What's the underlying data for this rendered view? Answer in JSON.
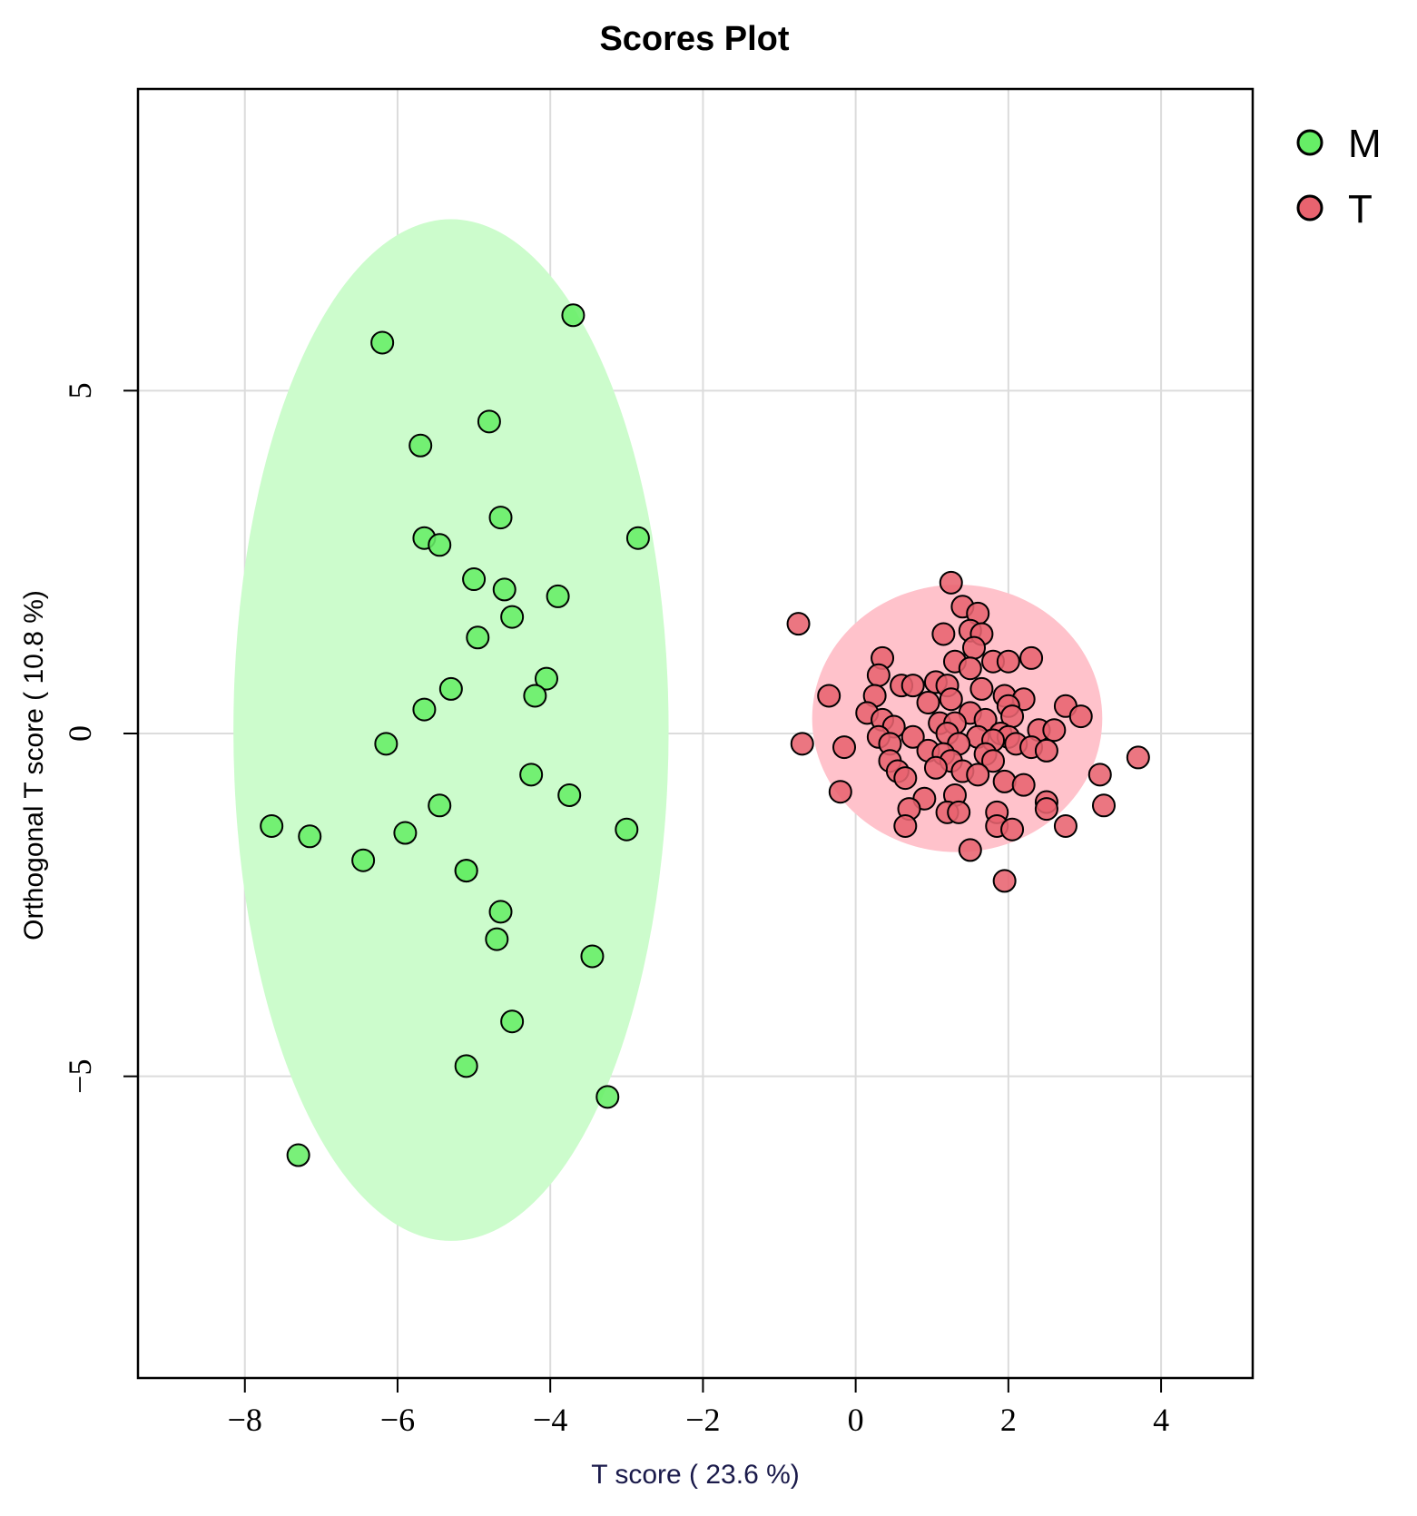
{
  "chart_data": {
    "type": "scatter",
    "title": "Scores Plot",
    "xlabel": "T score ( 23.6 %)",
    "ylabel": "Orthogonal T score ( 10.8 %)",
    "xlim": [
      -9.4,
      5.2
    ],
    "ylim": [
      -9.4,
      9.4
    ],
    "xticks": [
      -8,
      -6,
      -4,
      -2,
      0,
      2,
      4
    ],
    "xtick_labels": [
      "−8",
      "−6",
      "−4",
      "−2",
      "0",
      "2",
      "4"
    ],
    "yticks": [
      -5,
      0,
      5
    ],
    "ytick_labels": [
      "−5",
      "0",
      "5"
    ],
    "grid": true,
    "legend_position": "top-right (outside plot)",
    "series": [
      {
        "name": "M",
        "color": "#66ee66",
        "ellipse": {
          "cx": -5.3,
          "cy": 0.05,
          "rx": 2.85,
          "ry": 7.45,
          "color": "#ccfccc"
        },
        "points": [
          [
            -3.7,
            6.1
          ],
          [
            -6.2,
            5.7
          ],
          [
            -4.8,
            4.55
          ],
          [
            -5.7,
            4.2
          ],
          [
            -4.65,
            3.15
          ],
          [
            -2.85,
            2.85
          ],
          [
            -5.65,
            2.85
          ],
          [
            -5.45,
            2.75
          ],
          [
            -5.0,
            2.25
          ],
          [
            -4.6,
            2.1
          ],
          [
            -3.9,
            2.0
          ],
          [
            -4.5,
            1.7
          ],
          [
            -4.95,
            1.4
          ],
          [
            -4.05,
            0.8
          ],
          [
            -5.3,
            0.65
          ],
          [
            -4.2,
            0.55
          ],
          [
            -5.65,
            0.35
          ],
          [
            -6.15,
            -0.15
          ],
          [
            -4.25,
            -0.6
          ],
          [
            -3.75,
            -0.9
          ],
          [
            -5.45,
            -1.05
          ],
          [
            -7.65,
            -1.35
          ],
          [
            -3.0,
            -1.4
          ],
          [
            -5.9,
            -1.45
          ],
          [
            -7.15,
            -1.5
          ],
          [
            -6.45,
            -1.85
          ],
          [
            -5.1,
            -2.0
          ],
          [
            -5.1,
            -2.0
          ],
          [
            -4.65,
            -2.6
          ],
          [
            -4.7,
            -3.0
          ],
          [
            -3.45,
            -3.25
          ],
          [
            -4.5,
            -4.2
          ],
          [
            -5.1,
            -4.85
          ],
          [
            -3.25,
            -5.3
          ],
          [
            -7.3,
            -6.15
          ]
        ]
      },
      {
        "name": "T",
        "color": "#e8636f",
        "ellipse": {
          "cx": 1.33,
          "cy": 0.22,
          "rx": 1.9,
          "ry": 1.95,
          "color": "#ffc2cb"
        },
        "points": [
          [
            1.25,
            2.2
          ],
          [
            1.4,
            1.85
          ],
          [
            1.6,
            1.75
          ],
          [
            -0.75,
            1.6
          ],
          [
            1.5,
            1.5
          ],
          [
            1.15,
            1.45
          ],
          [
            1.65,
            1.45
          ],
          [
            1.55,
            1.25
          ],
          [
            0.35,
            1.1
          ],
          [
            2.3,
            1.1
          ],
          [
            1.3,
            1.05
          ],
          [
            1.8,
            1.05
          ],
          [
            2.0,
            1.05
          ],
          [
            0.3,
            0.85
          ],
          [
            1.5,
            0.95
          ],
          [
            1.05,
            0.75
          ],
          [
            1.2,
            0.7
          ],
          [
            0.6,
            0.7
          ],
          [
            0.75,
            0.7
          ],
          [
            1.65,
            0.65
          ],
          [
            -0.35,
            0.55
          ],
          [
            0.25,
            0.55
          ],
          [
            1.95,
            0.55
          ],
          [
            2.2,
            0.5
          ],
          [
            1.25,
            0.5
          ],
          [
            0.95,
            0.45
          ],
          [
            2.0,
            0.4
          ],
          [
            2.75,
            0.4
          ],
          [
            0.15,
            0.3
          ],
          [
            1.5,
            0.3
          ],
          [
            2.05,
            0.25
          ],
          [
            2.95,
            0.25
          ],
          [
            0.35,
            0.2
          ],
          [
            1.7,
            0.2
          ],
          [
            1.1,
            0.15
          ],
          [
            1.3,
            0.15
          ],
          [
            0.5,
            0.1
          ],
          [
            2.4,
            0.05
          ],
          [
            2.6,
            0.05
          ],
          [
            1.2,
            0.0
          ],
          [
            1.9,
            0.0
          ],
          [
            0.3,
            -0.05
          ],
          [
            0.75,
            -0.05
          ],
          [
            1.6,
            -0.05
          ],
          [
            2.0,
            -0.05
          ],
          [
            -0.7,
            -0.15
          ],
          [
            -0.15,
            -0.2
          ],
          [
            0.45,
            -0.15
          ],
          [
            1.35,
            -0.15
          ],
          [
            1.8,
            -0.1
          ],
          [
            2.1,
            -0.15
          ],
          [
            2.3,
            -0.2
          ],
          [
            0.95,
            -0.25
          ],
          [
            1.15,
            -0.3
          ],
          [
            1.7,
            -0.3
          ],
          [
            2.5,
            -0.25
          ],
          [
            3.7,
            -0.35
          ],
          [
            0.45,
            -0.4
          ],
          [
            1.25,
            -0.4
          ],
          [
            1.8,
            -0.4
          ],
          [
            0.55,
            -0.55
          ],
          [
            1.05,
            -0.5
          ],
          [
            1.4,
            -0.55
          ],
          [
            1.6,
            -0.6
          ],
          [
            3.2,
            -0.6
          ],
          [
            0.65,
            -0.65
          ],
          [
            1.95,
            -0.7
          ],
          [
            2.2,
            -0.75
          ],
          [
            -0.2,
            -0.85
          ],
          [
            1.3,
            -0.9
          ],
          [
            0.9,
            -0.95
          ],
          [
            2.5,
            -1.0
          ],
          [
            3.25,
            -1.05
          ],
          [
            0.7,
            -1.1
          ],
          [
            1.2,
            -1.15
          ],
          [
            1.35,
            -1.15
          ],
          [
            1.85,
            -1.15
          ],
          [
            2.5,
            -1.1
          ],
          [
            0.65,
            -1.35
          ],
          [
            1.85,
            -1.35
          ],
          [
            2.05,
            -1.4
          ],
          [
            2.75,
            -1.35
          ],
          [
            1.5,
            -1.7
          ],
          [
            1.95,
            -2.15
          ]
        ]
      }
    ]
  }
}
